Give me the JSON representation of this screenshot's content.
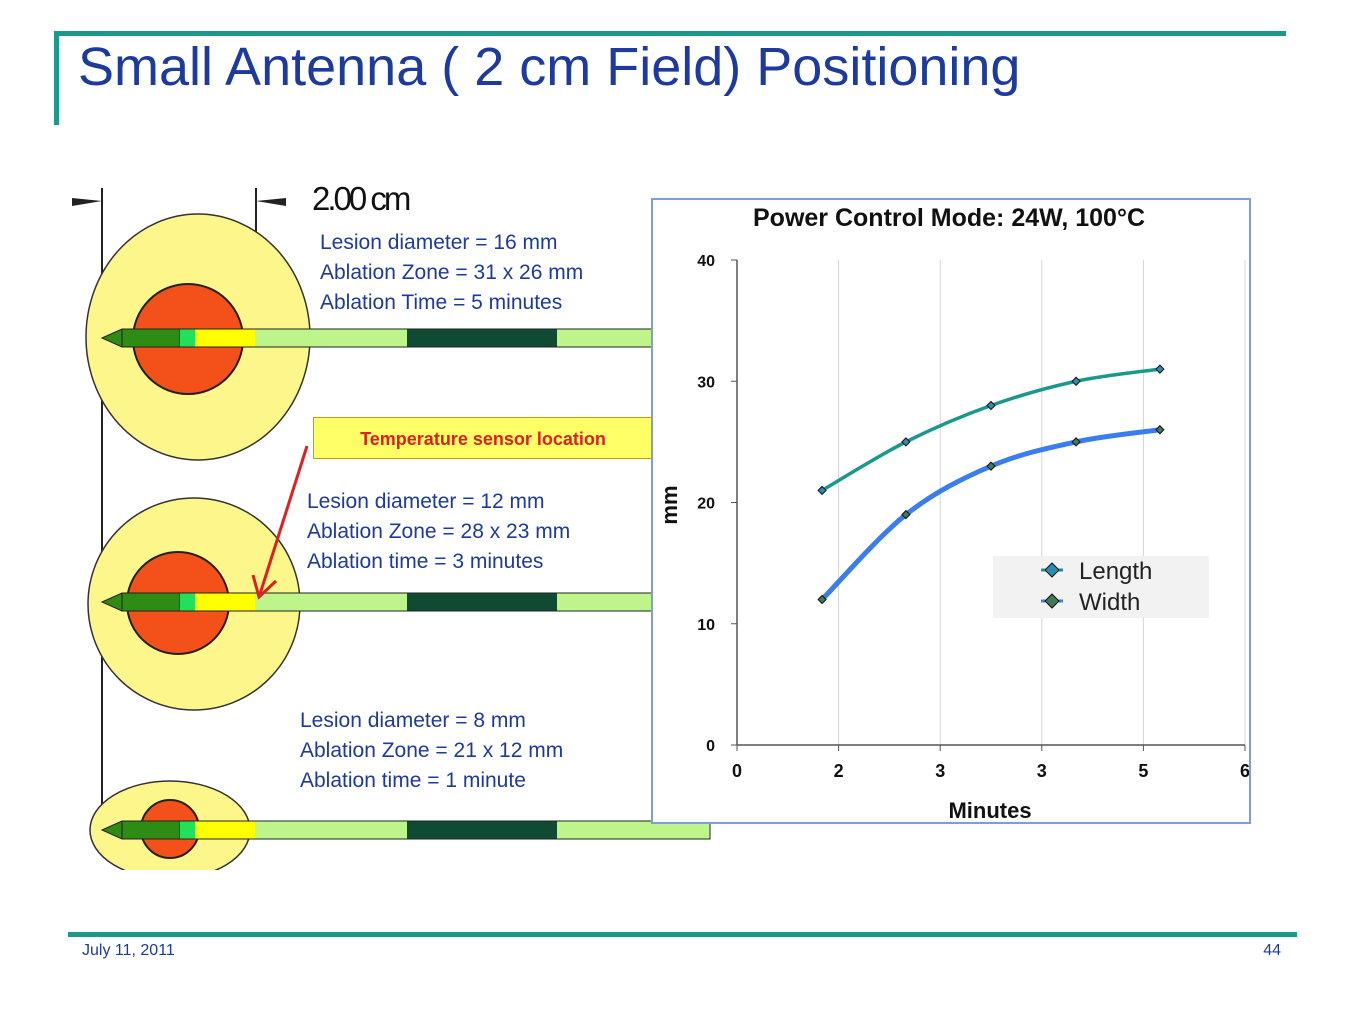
{
  "slide": {
    "title": "Small Antenna ( 2 cm Field) Positioning",
    "dimension_label": "2.00 cm",
    "sensor_callout": "Temperature sensor location",
    "footer_date": "July 11, 2011",
    "footer_page": "44"
  },
  "info_blocks": [
    {
      "lines": [
        "Lesion diameter = 16 mm",
        "Ablation Zone = 31 x 26 mm",
        "Ablation Time = 5 minutes"
      ]
    },
    {
      "lines": [
        "Lesion diameter = 12 mm",
        "Ablation Zone = 28 x 23 mm",
        "Ablation time = 3 minutes"
      ]
    },
    {
      "lines": [
        "Lesion diameter = 8 mm",
        "Ablation Zone = 21 x 12 mm",
        "Ablation time = 1 minute"
      ]
    }
  ],
  "colors": {
    "title": "#1d3aa0",
    "rule": "#1a9a8c",
    "ablation_zone": "#fdf68a",
    "lesion": "#f4501a",
    "length_series": "#19998e",
    "width_series": "#3a7df2",
    "arrow": "#e02020"
  },
  "chart_data": {
    "type": "line",
    "title": "Power Control Mode: 24W, 100°C",
    "xlabel": "Minutes",
    "ylabel": "mm",
    "x_tick_labels": [
      "0",
      "2",
      "3",
      "3",
      "5",
      "6"
    ],
    "y_tick_labels": [
      "0",
      "10",
      "20",
      "30",
      "40"
    ],
    "xlim": [
      0,
      4
    ],
    "ylim": [
      0,
      40
    ],
    "grid": "vertical",
    "legend_position": "right",
    "series": [
      {
        "name": "Length",
        "color": "#19998e",
        "x": [
          0.67,
          1.33,
          2.0,
          2.67,
          3.33
        ],
        "values": [
          21,
          25,
          28,
          30,
          31
        ]
      },
      {
        "name": "Width",
        "color": "#3a7df2",
        "x": [
          0.67,
          1.33,
          2.0,
          2.67,
          3.33
        ],
        "values": [
          12,
          19,
          23,
          25,
          26
        ]
      }
    ]
  }
}
